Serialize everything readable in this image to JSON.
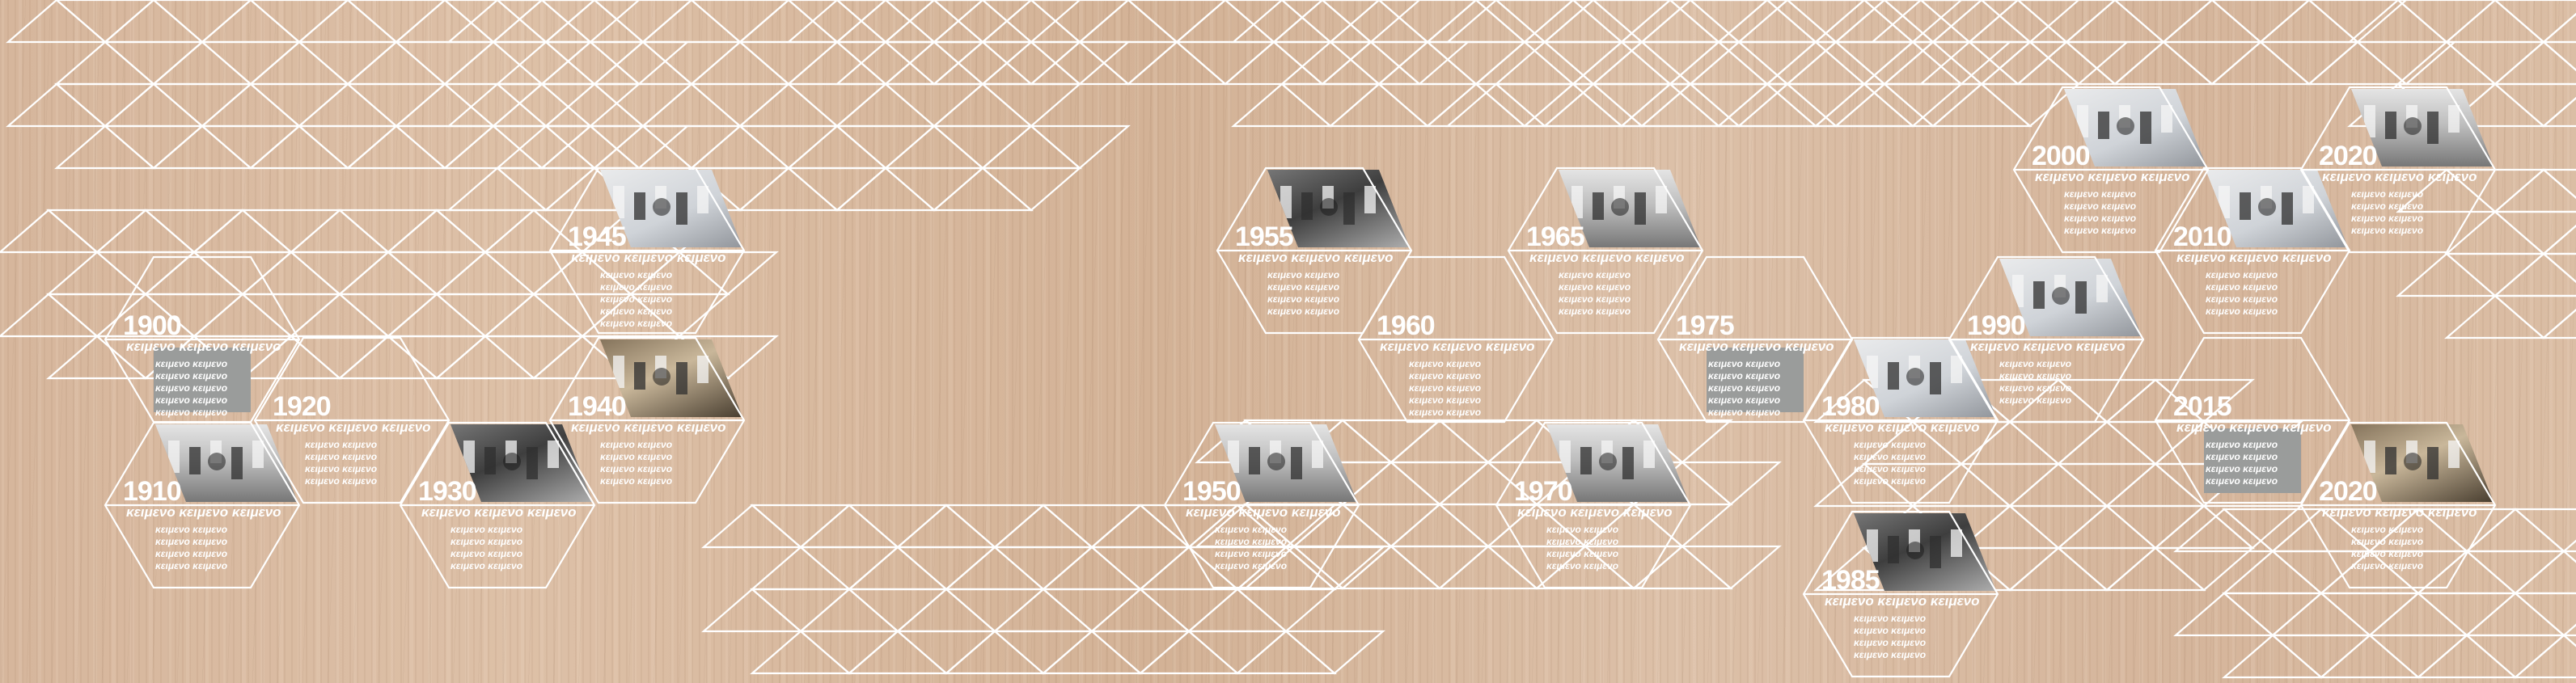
{
  "colors": {
    "lines": "#ffffff",
    "text": "#ffffff",
    "placeholder": "#9a9c9b",
    "wood": "#d8b9a0"
  },
  "entries": [
    {
      "year": "1900",
      "caption": "κειμενο κειμενο κειμενο",
      "lines": [
        "κειμενο κειμενο",
        "κειμενο κειμενο",
        "κειμενο κειμενο",
        "κειμενο κειμενο",
        "κειμενο κειμενο"
      ],
      "image": "gray-placeholder"
    },
    {
      "year": "1910",
      "caption": "κειμενο κειμενο κειμενο",
      "lines": [
        "κειμενο κειμενο",
        "κειμενο κειμενο",
        "κειμενο κειμενο",
        "κειμενο κειμενο"
      ],
      "image": "office-photo"
    },
    {
      "year": "1920",
      "caption": "κειμενο κειμενο κειμενο",
      "lines": [
        "κειμενο κειμενο",
        "κειμενο κειμενο",
        "κειμενο κειμενο",
        "κειμενο κειμενο"
      ],
      "image": "none"
    },
    {
      "year": "1930",
      "caption": "κειμενο κειμενο κειμενο",
      "lines": [
        "κειμενο κειμενο",
        "κειμενο κειμενο",
        "κειμενο κειμενο",
        "κειμενο κειμενο"
      ],
      "image": "control-panel-photo"
    },
    {
      "year": "1940",
      "caption": "κειμενο κειμενο κειμενο",
      "lines": [
        "κειμενο κειμενο",
        "κειμενο κειμενο",
        "κειμενο κειμενο",
        "κειμενο κειμενο"
      ],
      "image": "machine-room-photo"
    },
    {
      "year": "1945",
      "caption": "κειμενο κειμενο κειμενο",
      "lines": [
        "κειμενο κειμενο",
        "κειμενο κειμενο",
        "κειμενο κειμενο",
        "κειμενο κειμενο",
        "κειμενο κειμενο"
      ],
      "image": "computer-room-photo"
    },
    {
      "year": "1950",
      "caption": "κειμενο κειμενο κειμενο",
      "lines": [
        "κειμενο κειμενο",
        "κειμενο κειμενο",
        "κειμενο κειμενο",
        "κειμενο κειμενο"
      ],
      "image": "operator-photo"
    },
    {
      "year": "1955",
      "caption": "κειμενο κειμενο κειμενο",
      "lines": [
        "κειμενο κειμενο",
        "κειμενο κειμενο",
        "κειμενο κειμενο",
        "κειμενο κειμενο"
      ],
      "image": "mainframe-photo"
    },
    {
      "year": "1960",
      "caption": "κειμενο κειμενο κειμενο",
      "lines": [
        "κειμενο κειμενο",
        "κειμενο κειμενο",
        "κειμενο κειμενο",
        "κειμενο κειμενο",
        "κειμενο κειμενο"
      ],
      "image": "none"
    },
    {
      "year": "1965",
      "caption": "κειμενο κειμενο κειμενο",
      "lines": [
        "κειμενο κειμενο",
        "κειμενο κειμενο",
        "κειμενο κειμενο",
        "κειμενο κειμενο"
      ],
      "image": "tape-drives-photo"
    },
    {
      "year": "1970",
      "caption": "κειμενο κειμενο κειμενο",
      "lines": [
        "κειμενο κειμενο",
        "κειμενο κειμενο",
        "κειμενο κειμενο",
        "κειμενο κειμενο"
      ],
      "image": "office-photo"
    },
    {
      "year": "1975",
      "caption": "κειμενο κειμενο κειμενο",
      "lines": [
        "κειμενο κειμενο",
        "κειμενο κειμενο",
        "κειμενο κειμενο",
        "κειμενο κειμενο",
        "κειμενο κειμενο"
      ],
      "image": "gray-placeholder"
    },
    {
      "year": "1980",
      "caption": "κειμενο κειμενο κειμενο",
      "lines": [
        "κειμενο κειμενο",
        "κειμενο κειμενο",
        "κειμενο κειμενο",
        "κειμενο κειμενο"
      ],
      "image": "personal-computer-photo"
    },
    {
      "year": "1985",
      "caption": "κειμενο κειμενο κειμενο",
      "lines": [
        "κειμενο κειμενο",
        "κειμενο κειμενο",
        "κειμενο κειμενο",
        "κειμενο κειμενο"
      ],
      "image": "control-panel-photo"
    },
    {
      "year": "1990",
      "caption": "κειμενο κειμενο κειμενο",
      "lines": [
        "κειμενο κειμενο",
        "κειμενο κειμενο",
        "κειμενο κειμενο",
        "κειμενο κειμενο"
      ],
      "image": "mac-photo"
    },
    {
      "year": "2000",
      "caption": "κειμενο κειμενο κειμενο",
      "lines": [
        "κειμενο κειμενο",
        "κειμενο κειμενο",
        "κειμενο κειμενο",
        "κειμενο κειμενο"
      ],
      "image": "modern-computer-photo"
    },
    {
      "year": "2010",
      "caption": "κειμενο κειμενο κειμενο",
      "lines": [
        "κειμενο κειμενο",
        "κειμενο κειμενο",
        "κειμενο κειμενο",
        "κειμενο κειμενο"
      ],
      "image": "computer-room-photo"
    },
    {
      "year": "2015",
      "caption": "κειμενο κειμενο κειμενο",
      "lines": [
        "κειμενο κειμενο",
        "κειμενο κειμενο",
        "κειμενο κειμενο",
        "κειμενο κειμενο"
      ],
      "image": "gray-placeholder"
    },
    {
      "year": "2020",
      "caption": "κειμενο κειμενο κειμενο",
      "lines": [
        "κειμενο κειμενο",
        "κειμενο κειμενο",
        "κειμενο κειμενο",
        "κειμενο κειμενο"
      ],
      "image": "operator-photo"
    },
    {
      "year": "2020",
      "caption": "κειμενο κειμενο κειμενο",
      "lines": [
        "κειμενο κειμενο",
        "κειμενο κειμενο",
        "κειμενο κειμενο",
        "κειμενο κειμενο"
      ],
      "image": "machine-room-photo"
    }
  ]
}
